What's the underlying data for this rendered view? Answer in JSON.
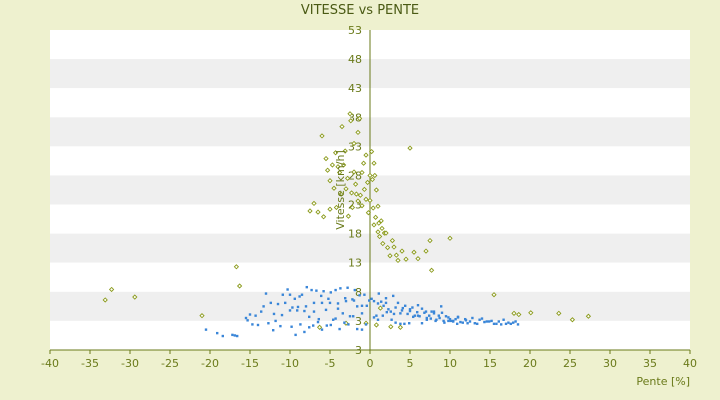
{
  "chart_data": {
    "type": "scatter",
    "title": "VITESSE vs PENTE",
    "xlabel": "Pente [%]",
    "ylabel": "Vitesse [km/h]",
    "xlim": [
      -40,
      40
    ],
    "ylim": [
      -2,
      53
    ],
    "x_ticks": [
      "-40",
      "-35",
      "-30",
      "-25",
      "-20",
      "-15",
      "-10",
      "-5",
      "0",
      "5",
      "10",
      "15",
      "20",
      "25",
      "30",
      "35",
      "40"
    ],
    "y_ticks": [
      "53",
      "48",
      "43",
      "38",
      "33",
      "28",
      "23",
      "18",
      "13",
      "8",
      "3",
      "3"
    ],
    "grid": "horizontal alternating bands",
    "legend": "none",
    "colors": {
      "background": "#eef1cf",
      "band_gray": "#efefef",
      "series_green": "#8a9a1a",
      "series_blue": "#3a86d8",
      "axis": "#6a7a1a"
    },
    "series": [
      {
        "color": "#8a9a1a",
        "marker": "diamond-outline",
        "x": [
          -33.1,
          -32.3,
          -29.4,
          -21.0,
          -16.7,
          -16.3,
          -7.5,
          -7.0,
          -6.5,
          -6.0,
          -5.8,
          -5.5,
          -5.3,
          -5.0,
          -5.0,
          -4.7,
          -4.5,
          -4.3,
          -4.2,
          -4.0,
          -3.8,
          -3.6,
          -3.5,
          -3.3,
          -3.1,
          -3.0,
          -2.8,
          -2.7,
          -2.5,
          -2.4,
          -2.3,
          -2.2,
          -2.0,
          -2.0,
          -1.8,
          -1.7,
          -1.5,
          -1.5,
          -1.3,
          -1.2,
          -1.0,
          -1.0,
          -0.8,
          -0.7,
          -0.5,
          -0.5,
          -0.3,
          -0.2,
          0.0,
          0.0,
          0.2,
          0.3,
          0.4,
          0.5,
          0.5,
          0.6,
          0.7,
          0.8,
          1.0,
          1.0,
          1.1,
          1.2,
          1.4,
          1.5,
          1.6,
          1.8,
          2.0,
          2.2,
          2.5,
          2.8,
          3.0,
          3.3,
          3.5,
          4.0,
          4.5,
          5.0,
          5.5,
          6.0,
          7.0,
          7.5,
          7.7,
          10.0,
          15.5,
          18.0,
          18.6,
          20.1,
          23.6,
          25.3,
          27.3,
          -6.3,
          -3.0,
          -0.5,
          0.8,
          1.3,
          2.6,
          3.8
        ],
        "y": [
          6.6,
          8.4,
          7.1,
          3.9,
          12.3,
          9.0,
          21.9,
          23.2,
          21.7,
          34.8,
          20.9,
          30.9,
          28.9,
          27.1,
          22.2,
          29.8,
          25.8,
          31.9,
          22.5,
          29.5,
          28.5,
          24.8,
          36.4,
          29.8,
          32.2,
          25.7,
          27.5,
          21.0,
          38.6,
          37.4,
          25.0,
          22.5,
          33.5,
          28.6,
          26.5,
          24.8,
          35.4,
          23.6,
          37.8,
          24.6,
          28.5,
          22.8,
          30.1,
          25.6,
          31.5,
          23.9,
          26.8,
          21.6,
          28.0,
          23.7,
          32.1,
          27.3,
          22.4,
          30.1,
          19.5,
          28.0,
          20.8,
          25.5,
          22.7,
          18.3,
          19.8,
          17.5,
          20.2,
          18.9,
          16.3,
          18.1,
          18.1,
          15.6,
          14.2,
          16.8,
          15.7,
          14.3,
          13.4,
          15.0,
          13.6,
          32.7,
          14.8,
          13.7,
          15.0,
          16.8,
          11.7,
          17.2,
          7.5,
          4.3,
          4.1,
          4.4,
          4.3,
          3.2,
          3.8,
          1.9,
          2.6,
          2.6,
          2.3,
          5.2,
          2.0,
          1.9
        ]
      },
      {
        "color": "#3a86d8",
        "marker": "square",
        "x": [
          -20.5,
          -19.1,
          -18.4,
          -17.2,
          -16.9,
          -16.6,
          -15.5,
          -15.3,
          -15.0,
          -14.7,
          -14.3,
          -14.0,
          -13.6,
          -13.3,
          -13.0,
          -12.7,
          -12.4,
          -12.1,
          -11.8,
          -11.5,
          -11.2,
          -10.9,
          -10.6,
          -10.3,
          -10.0,
          -9.7,
          -9.4,
          -9.1,
          -8.8,
          -8.5,
          -8.2,
          -7.9,
          -7.6,
          -7.3,
          -7.0,
          -6.7,
          -6.4,
          -6.1,
          -5.8,
          -5.5,
          -5.2,
          -4.9,
          -4.6,
          -4.3,
          -4.0,
          -3.7,
          -3.4,
          -3.1,
          -2.8,
          -2.5,
          -2.2,
          -1.9,
          -1.6,
          -1.3,
          -1.0,
          -0.7,
          -0.4,
          -0.1,
          0.2,
          0.5,
          0.8,
          1.1,
          1.4,
          1.7,
          2.0,
          2.3,
          2.6,
          2.9,
          3.2,
          3.5,
          3.8,
          4.1,
          4.4,
          4.7,
          5.0,
          5.3,
          5.6,
          5.9,
          6.2,
          6.5,
          6.8,
          7.1,
          7.4,
          7.7,
          8.0,
          8.3,
          8.6,
          8.9,
          9.2,
          9.5,
          9.8,
          10.1,
          10.4,
          10.7,
          11.0,
          11.3,
          11.6,
          11.9,
          12.2,
          12.5,
          12.8,
          13.1,
          13.4,
          13.7,
          14.0,
          14.3,
          14.6,
          14.9,
          15.2,
          15.5,
          15.8,
          16.1,
          16.4,
          16.7,
          17.0,
          17.3,
          17.6,
          17.9,
          18.2,
          18.5,
          -9.8,
          -9.3,
          -8.7,
          -8.2,
          -7.6,
          -7.1,
          -6.5,
          -6.0,
          -5.4,
          -4.9,
          -4.3,
          -3.8,
          -3.2,
          -2.7,
          -2.1,
          -1.6,
          -1.0,
          -0.5,
          0.5,
          1.0,
          1.6,
          2.1,
          2.7,
          3.2,
          3.8,
          4.3,
          4.9,
          5.4,
          6.0,
          6.5,
          7.1,
          7.6,
          8.2,
          8.7,
          9.3,
          9.8,
          10.4,
          10.9,
          -12.0,
          -11.0,
          -10.0,
          -9.0,
          -8.0,
          -7.0,
          -6.0,
          -5.0,
          -4.0,
          -3.0,
          -2.0,
          -1.0,
          1.0,
          2.0,
          3.0,
          4.0,
          5.0,
          6.0,
          7.0,
          8.0,
          9.0,
          10.0,
          11.0,
          12.0
        ],
        "y": [
          1.5,
          0.9,
          0.4,
          0.6,
          0.5,
          0.4,
          3.5,
          3.1,
          4.1,
          2.4,
          3.9,
          2.3,
          4.6,
          5.5,
          7.7,
          2.6,
          6.1,
          1.4,
          3.0,
          5.9,
          2.1,
          7.5,
          6.1,
          8.4,
          7.5,
          5.3,
          6.8,
          4.8,
          7.2,
          7.5,
          4.7,
          8.8,
          3.7,
          8.3,
          6.1,
          8.2,
          3.3,
          7.3,
          8.1,
          4.9,
          6.8,
          7.9,
          3.2,
          8.3,
          6.0,
          8.6,
          4.3,
          6.9,
          8.7,
          3.8,
          6.7,
          8.3,
          5.5,
          7.4,
          4.3,
          7.5,
          5.6,
          6.5,
          6.8,
          6.4,
          3.9,
          7.7,
          6.3,
          5.6,
          6.9,
          5.0,
          4.6,
          7.3,
          5.3,
          6.1,
          4.3,
          5.2,
          5.6,
          4.2,
          4.7,
          5.3,
          3.9,
          4.5,
          3.8,
          5.1,
          4.4,
          3.5,
          3.9,
          4.6,
          4.3,
          3.2,
          3.9,
          5.5,
          3.0,
          3.8,
          3.6,
          3.0,
          2.9,
          3.3,
          3.7,
          2.8,
          2.7,
          3.3,
          2.6,
          2.9,
          3.5,
          2.6,
          2.5,
          3.2,
          3.4,
          2.8,
          2.9,
          2.9,
          3.0,
          2.5,
          2.5,
          2.9,
          2.4,
          3.2,
          2.5,
          2.7,
          2.5,
          2.7,
          2.9,
          2.4,
          2.0,
          0.6,
          2.4,
          1.1,
          1.9,
          2.2,
          2.8,
          1.5,
          2.2,
          2.3,
          3.4,
          1.6,
          2.7,
          2.4,
          3.8,
          1.6,
          1.5,
          2.4,
          3.6,
          3.2,
          3.9,
          4.5,
          3.2,
          2.7,
          2.5,
          2.5,
          2.6,
          3.7,
          3.9,
          2.6,
          3.2,
          3.4,
          3.0,
          3.5,
          2.7,
          3.0,
          3.0,
          2.5,
          4.2,
          4.0,
          4.8,
          5.4,
          5.5,
          4.6,
          6.1,
          6.1,
          5.1,
          6.4,
          6.5,
          5.6,
          6.0,
          6.1,
          4.2,
          4.8,
          5.0,
          5.7,
          4.6,
          4.6,
          4.4,
          3.3,
          3.6,
          3.1
        ]
      }
    ]
  }
}
